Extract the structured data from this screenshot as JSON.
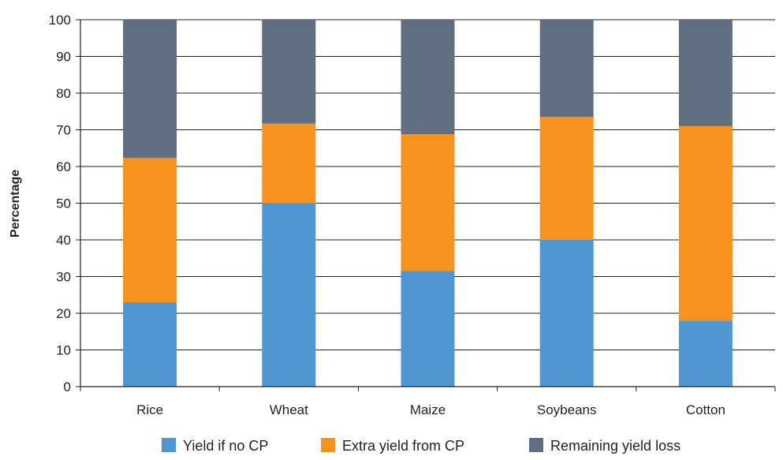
{
  "chart_data": {
    "type": "bar",
    "stacked": true,
    "categories": [
      "Rice",
      "Wheat",
      "Maize",
      "Soybeans",
      "Cotton"
    ],
    "series": [
      {
        "name": "Yield if no CP",
        "color": "#5096d2",
        "values": [
          23,
          50,
          31.5,
          40,
          18
        ]
      },
      {
        "name": "Extra yield from CP",
        "color": "#f6921e",
        "values": [
          39.3,
          21.7,
          37.3,
          33.5,
          53
        ]
      },
      {
        "name": "Remaining yield loss",
        "color": "#5f6e82",
        "values": [
          37.7,
          28.3,
          31.2,
          26.5,
          29
        ]
      }
    ],
    "title": "",
    "xlabel": "",
    "ylabel": "Percentage",
    "ylim": [
      0,
      100
    ],
    "yticks": [
      "0",
      "10",
      "20",
      "30",
      "40",
      "50",
      "60",
      "70",
      "80",
      "90",
      "100"
    ],
    "grid": true,
    "legend_position": "bottom"
  }
}
